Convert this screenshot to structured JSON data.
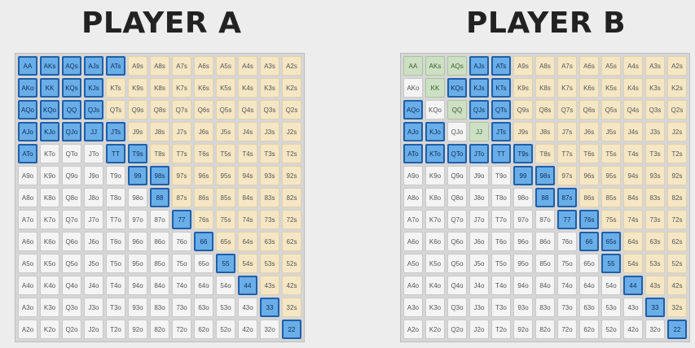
{
  "titles": {
    "a": "PLAYER A",
    "b": "PLAYER B"
  },
  "ranks": [
    "A",
    "K",
    "Q",
    "J",
    "T",
    "9",
    "8",
    "7",
    "6",
    "5",
    "4",
    "3",
    "2"
  ],
  "colors": {
    "selected": "#6aaee8",
    "selected_border": "#1f5fa8",
    "suited": "#f5e6c4",
    "offsuit": "#f4f4f4",
    "mixed": "#cde0c3"
  },
  "player_a": {
    "selected": [
      "AA",
      "AKs",
      "AQs",
      "AJs",
      "ATs",
      "AKo",
      "KK",
      "KQs",
      "KJs",
      "AQo",
      "KQo",
      "QQ",
      "QJs",
      "AJo",
      "KJo",
      "QJo",
      "JJ",
      "JTs",
      "ATo",
      "TT",
      "T9s",
      "99",
      "98s",
      "88",
      "77",
      "66",
      "55",
      "44",
      "33",
      "22"
    ],
    "mixed": []
  },
  "player_b": {
    "selected": [
      "AJs",
      "ATs",
      "KQs",
      "KJs",
      "KTs",
      "AQo",
      "QJs",
      "QTs",
      "AJo",
      "KJo",
      "JTs",
      "ATo",
      "KTo",
      "QTo",
      "JTo",
      "TT",
      "T9s",
      "99",
      "98s",
      "88",
      "87s",
      "77",
      "76s",
      "66",
      "65s",
      "55",
      "44",
      "33",
      "22"
    ],
    "mixed": [
      "AA",
      "AKs",
      "AQs",
      "KK",
      "QQ",
      "JJ"
    ]
  }
}
